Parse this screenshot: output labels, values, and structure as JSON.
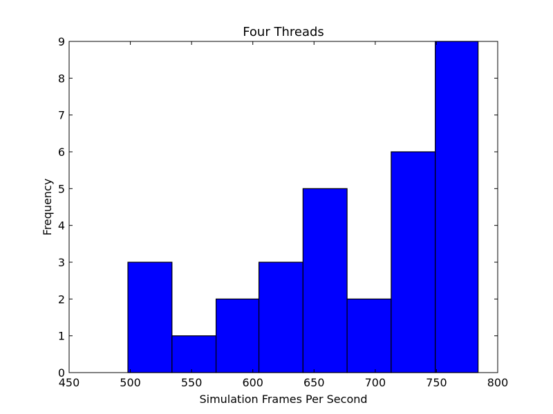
{
  "chart_data": {
    "type": "bar",
    "title": "Four Threads",
    "xlabel": "Simulation Frames Per Second",
    "ylabel": "Frequency",
    "xlim": [
      450,
      800
    ],
    "ylim": [
      0,
      9
    ],
    "xticks": [
      450,
      500,
      550,
      600,
      650,
      700,
      750,
      800
    ],
    "yticks": [
      0,
      1,
      2,
      3,
      4,
      5,
      6,
      7,
      8,
      9
    ],
    "bins": [
      {
        "start": 498,
        "end": 534,
        "value": 3
      },
      {
        "start": 534,
        "end": 570,
        "value": 1
      },
      {
        "start": 570,
        "end": 605,
        "value": 2
      },
      {
        "start": 605,
        "end": 641,
        "value": 3
      },
      {
        "start": 641,
        "end": 677,
        "value": 5
      },
      {
        "start": 677,
        "end": 713,
        "value": 2
      },
      {
        "start": 713,
        "end": 749,
        "value": 6
      },
      {
        "start": 749,
        "end": 784,
        "value": 9
      }
    ],
    "bar_color": "#0000ff",
    "edge_color": "#000000",
    "grid": false,
    "legend": false
  }
}
